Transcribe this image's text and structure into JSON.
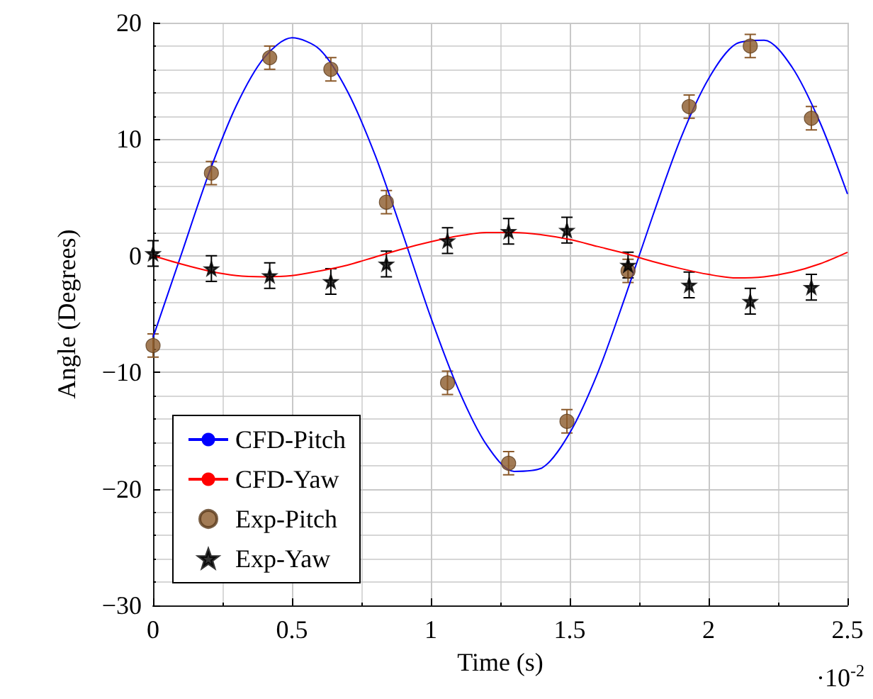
{
  "chart_data": {
    "type": "line",
    "xlabel": "Time (s)",
    "ylabel": "Angle (Degrees)",
    "xlim": [
      0,
      2.5
    ],
    "xticks": [
      0,
      0.5,
      1,
      1.5,
      2,
      2.5
    ],
    "ylim": [
      -30,
      20
    ],
    "yticks": [
      -30,
      -20,
      -10,
      0,
      10,
      20
    ],
    "grid": true,
    "legend": "bottom left",
    "annotations": [
      "·10$^{-2}$"
    ],
    "series": [
      {
        "name": "CFD-Pitch",
        "type": "line",
        "color": "#0000ff",
        "marker": "none",
        "x": [
          0,
          0.1,
          0.2,
          0.3,
          0.4,
          0.5,
          0.6,
          0.7,
          0.8,
          0.9,
          1.0,
          1.1,
          1.2,
          1.3,
          1.4,
          1.5,
          1.6,
          1.7,
          1.8,
          1.9,
          2.0,
          2.1,
          2.2,
          2.3,
          2.4,
          2.5
        ],
        "values": [
          -7.0,
          0,
          7.0,
          12.9,
          17.0,
          18.7,
          17.7,
          14.1,
          8.6,
          1.8,
          -5.3,
          -11.5,
          -16.2,
          -18.5,
          -18.2,
          -15.2,
          -10.1,
          -3.5,
          3.5,
          10.1,
          15.2,
          18.2,
          18.5,
          16.2,
          11.5,
          5.3
        ]
      },
      {
        "name": "CFD-Yaw",
        "type": "line",
        "color": "#ff0000",
        "marker": "none",
        "x": [
          0,
          0.1,
          0.2,
          0.3,
          0.4,
          0.5,
          0.6,
          0.7,
          0.8,
          0.9,
          1.0,
          1.1,
          1.2,
          1.3,
          1.4,
          1.5,
          1.6,
          1.7,
          1.8,
          1.9,
          2.0,
          2.1,
          2.2,
          2.3,
          2.4,
          2.5
        ],
        "values": [
          0,
          -0.7,
          -1.3,
          -1.7,
          -1.8,
          -1.7,
          -1.3,
          -0.8,
          -0.1,
          0.6,
          1.2,
          1.7,
          2.0,
          2.0,
          1.8,
          1.4,
          0.8,
          0.2,
          -0.5,
          -1.1,
          -1.6,
          -1.9,
          -1.8,
          -1.4,
          -0.7,
          0.3
        ]
      },
      {
        "name": "Exp-Pitch",
        "type": "scatter",
        "color": "#8b5a2b",
        "marker": "circle",
        "x": [
          0,
          0.21,
          0.42,
          0.64,
          0.84,
          1.06,
          1.28,
          1.49,
          1.71,
          1.93,
          2.15,
          2.37
        ],
        "values": [
          -7.7,
          7.1,
          17.0,
          16.0,
          4.6,
          -10.9,
          -17.8,
          -14.2,
          -1.3,
          12.8,
          18.0,
          11.8
        ],
        "errors": [
          1,
          1,
          1,
          1,
          1,
          1,
          1,
          1,
          1,
          1,
          1,
          1
        ]
      },
      {
        "name": "Exp-Yaw",
        "type": "scatter",
        "color": "#000000",
        "marker": "star",
        "x": [
          0,
          0.21,
          0.42,
          0.64,
          0.84,
          1.06,
          1.28,
          1.49,
          1.71,
          1.93,
          2.15,
          2.37
        ],
        "values": [
          0.2,
          -1.1,
          -1.7,
          -2.2,
          -0.7,
          1.3,
          2.1,
          2.2,
          -0.8,
          -2.5,
          -3.9,
          -2.7
        ],
        "errors": [
          1.1,
          1.1,
          1.1,
          1.1,
          1.1,
          1.1,
          1.1,
          1.1,
          1.1,
          1.1,
          1.1,
          1.1
        ]
      }
    ]
  }
}
